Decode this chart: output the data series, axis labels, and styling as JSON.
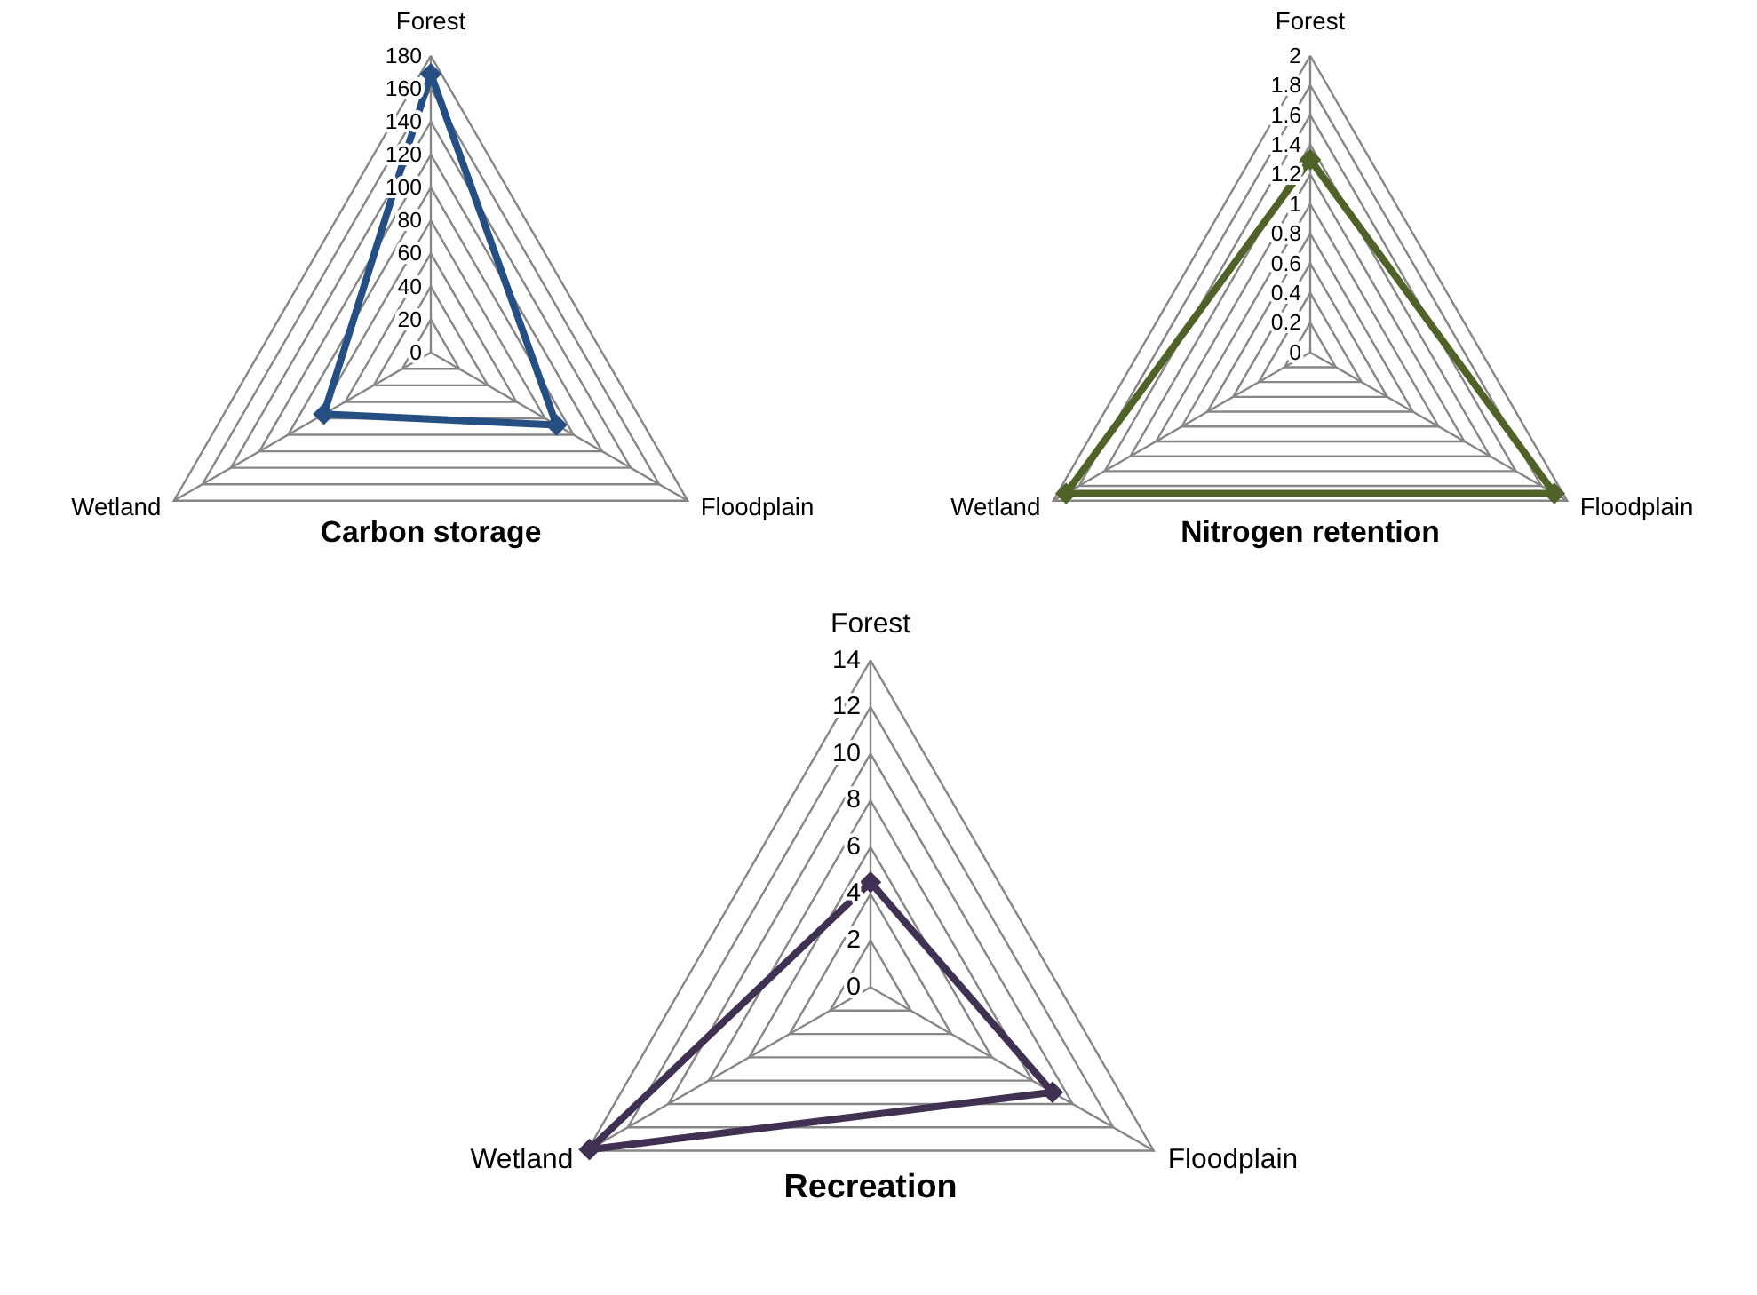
{
  "chart_data": [
    {
      "type": "radar",
      "title": "Carbon storage",
      "categories": [
        "Forest",
        "Floodplain",
        "Wetland"
      ],
      "series": [
        {
          "color": "#254e83",
          "values": [
            169,
            88,
            75
          ]
        }
      ],
      "ylim": [
        0,
        180
      ],
      "yticks": [
        0,
        20,
        40,
        60,
        80,
        100,
        120,
        140,
        160,
        180
      ],
      "grid": true,
      "marker": "diamond"
    },
    {
      "type": "radar",
      "title": "Nitrogen retention",
      "categories": [
        "Forest",
        "Floodplain",
        "Wetland"
      ],
      "series": [
        {
          "color": "#4f6228",
          "values": [
            1.3,
            1.9,
            1.9
          ]
        }
      ],
      "ylim": [
        0,
        2
      ],
      "yticks": [
        0,
        0.2,
        0.4,
        0.6,
        0.8,
        1,
        1.2,
        1.4,
        1.6,
        1.8,
        2
      ],
      "grid": true,
      "marker": "diamond"
    },
    {
      "type": "radar",
      "title": "Recreation",
      "categories": [
        "Forest",
        "Floodplain",
        "Wetland"
      ],
      "series": [
        {
          "color": "#403152",
          "values": [
            4.5,
            9,
            13.9
          ]
        }
      ],
      "ylim": [
        0,
        14
      ],
      "yticks": [
        0,
        2,
        4,
        6,
        8,
        10,
        12,
        14
      ],
      "grid": true,
      "marker": "diamond"
    }
  ]
}
